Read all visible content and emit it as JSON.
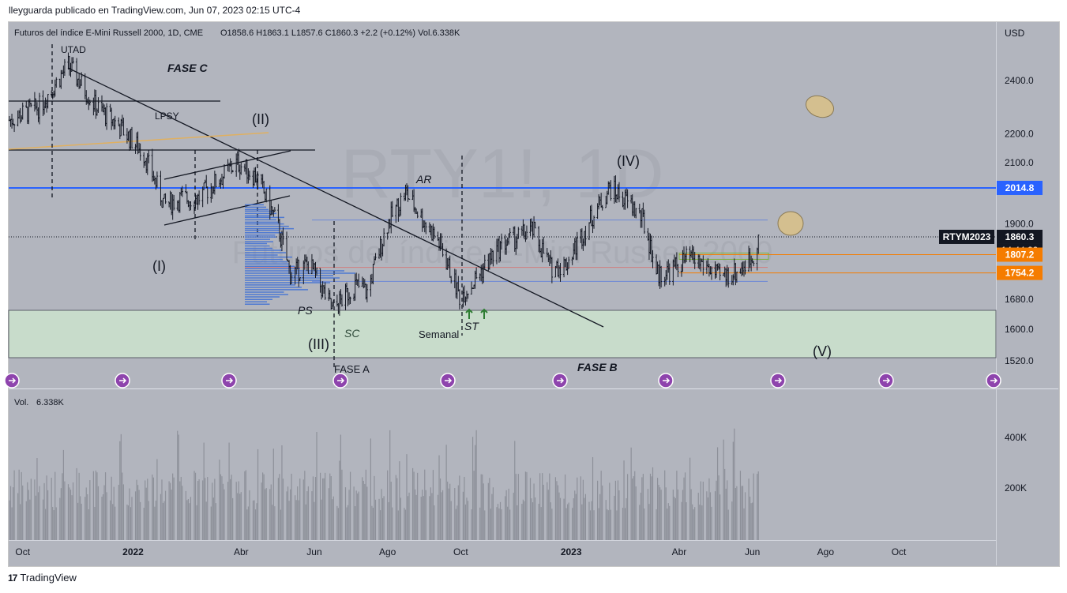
{
  "header": {
    "credit": "lleyguarda publicado en TradingView.com, Jun 07, 2023 02:15 UTC-4",
    "brand": "TradingView"
  },
  "legend": {
    "symbol_desc": "Futuros del índice E-Mini Russell 2000, 1D, CME",
    "ohlc": "O1858.6  H1863.1  L1857.6  C1860.3  +2.2 (+0.12%)  Vol.6.338K"
  },
  "watermark": {
    "symbol": "RTY1!, 1D",
    "name": "Futuros del índice E-Mini Russell 2000"
  },
  "colors": {
    "background": "#b2b5be",
    "candle": "#131722",
    "blue_level": "#2962ff",
    "orange_level": "#f57c00",
    "zone": "#c8dccb",
    "trendline": "#000000"
  },
  "price_axis": {
    "currency": "USD",
    "ticks": [
      "2400.0",
      "2200.0",
      "2100.0",
      "1900.0",
      "1680.0",
      "1600.0",
      "1520.0"
    ],
    "levels": [
      {
        "label": "2014.8",
        "color": "#2962ff"
      },
      {
        "label": "RTYM2023",
        "value": "1860.3",
        "countdown": "14:44:22",
        "color": "#131722"
      },
      {
        "label": "1807.2",
        "color": "#f57c00"
      },
      {
        "label": "1754.2",
        "color": "#f57c00"
      }
    ]
  },
  "volume_pane": {
    "label": "Vol.",
    "value": "6.338K",
    "ticks": [
      "400K",
      "200K"
    ]
  },
  "time_axis": [
    "Oct",
    "2022",
    "Abr",
    "Jun",
    "Ago",
    "Oct",
    "2023",
    "Abr",
    "Jun",
    "Ago",
    "Oct"
  ],
  "annotations": {
    "utad": "UTAD",
    "fase_c": "FASE C",
    "lpsy": "LPSY",
    "wave_ii": "(II)",
    "wave_i": "(I)",
    "wave_iii": "(III)",
    "wave_iv": "(IV)",
    "wave_v": "(V)",
    "ar": "AR",
    "ps": "PS",
    "sc": "SC",
    "st": "ST",
    "semanal": "Semanal",
    "fase_a": "FASE A",
    "fase_b": "FASE B"
  },
  "chart_data": {
    "type": "candlestick",
    "title": "Futuros del índice E-Mini Russell 2000, 1D, CME",
    "y_scale": "log",
    "ylim": [
      1500,
      2560
    ],
    "x_range": [
      "2021-09-20",
      "2023-12-15"
    ],
    "series": [
      {
        "name": "close_path",
        "x": [
          "2021-09-20",
          "2021-10-15",
          "2021-11-08",
          "2021-12-01",
          "2021-12-20",
          "2022-01-10",
          "2022-01-27",
          "2022-02-10",
          "2022-02-24",
          "2022-03-10",
          "2022-03-29",
          "2022-04-14",
          "2022-05-01",
          "2022-05-12",
          "2022-05-28",
          "2022-06-16",
          "2022-07-05",
          "2022-07-15",
          "2022-08-01",
          "2022-08-16",
          "2022-08-31",
          "2022-09-12",
          "2022-09-30",
          "2022-10-10",
          "2022-10-20",
          "2022-11-05",
          "2022-11-30",
          "2022-12-15",
          "2022-12-28",
          "2023-01-15",
          "2023-02-02",
          "2023-02-20",
          "2023-03-02",
          "2023-03-14",
          "2023-03-24",
          "2023-04-10",
          "2023-04-25",
          "2023-05-04",
          "2023-05-20",
          "2023-06-01",
          "2023-06-06"
        ],
        "values": [
          2250,
          2300,
          2460,
          2300,
          2230,
          2130,
          1960,
          1980,
          1980,
          2030,
          2100,
          2050,
          1900,
          1750,
          1780,
          1650,
          1720,
          1700,
          1900,
          2000,
          1910,
          1850,
          1690,
          1720,
          1770,
          1840,
          1880,
          1770,
          1780,
          1900,
          2015,
          1960,
          1910,
          1750,
          1760,
          1800,
          1770,
          1740,
          1760,
          1800,
          1860
        ]
      }
    ],
    "price_levels": [
      2014.8,
      1860.3,
      1807.2,
      1754.2
    ],
    "volume": {
      "ticks": [
        "400K",
        "200K"
      ],
      "last": "6.338K"
    }
  }
}
